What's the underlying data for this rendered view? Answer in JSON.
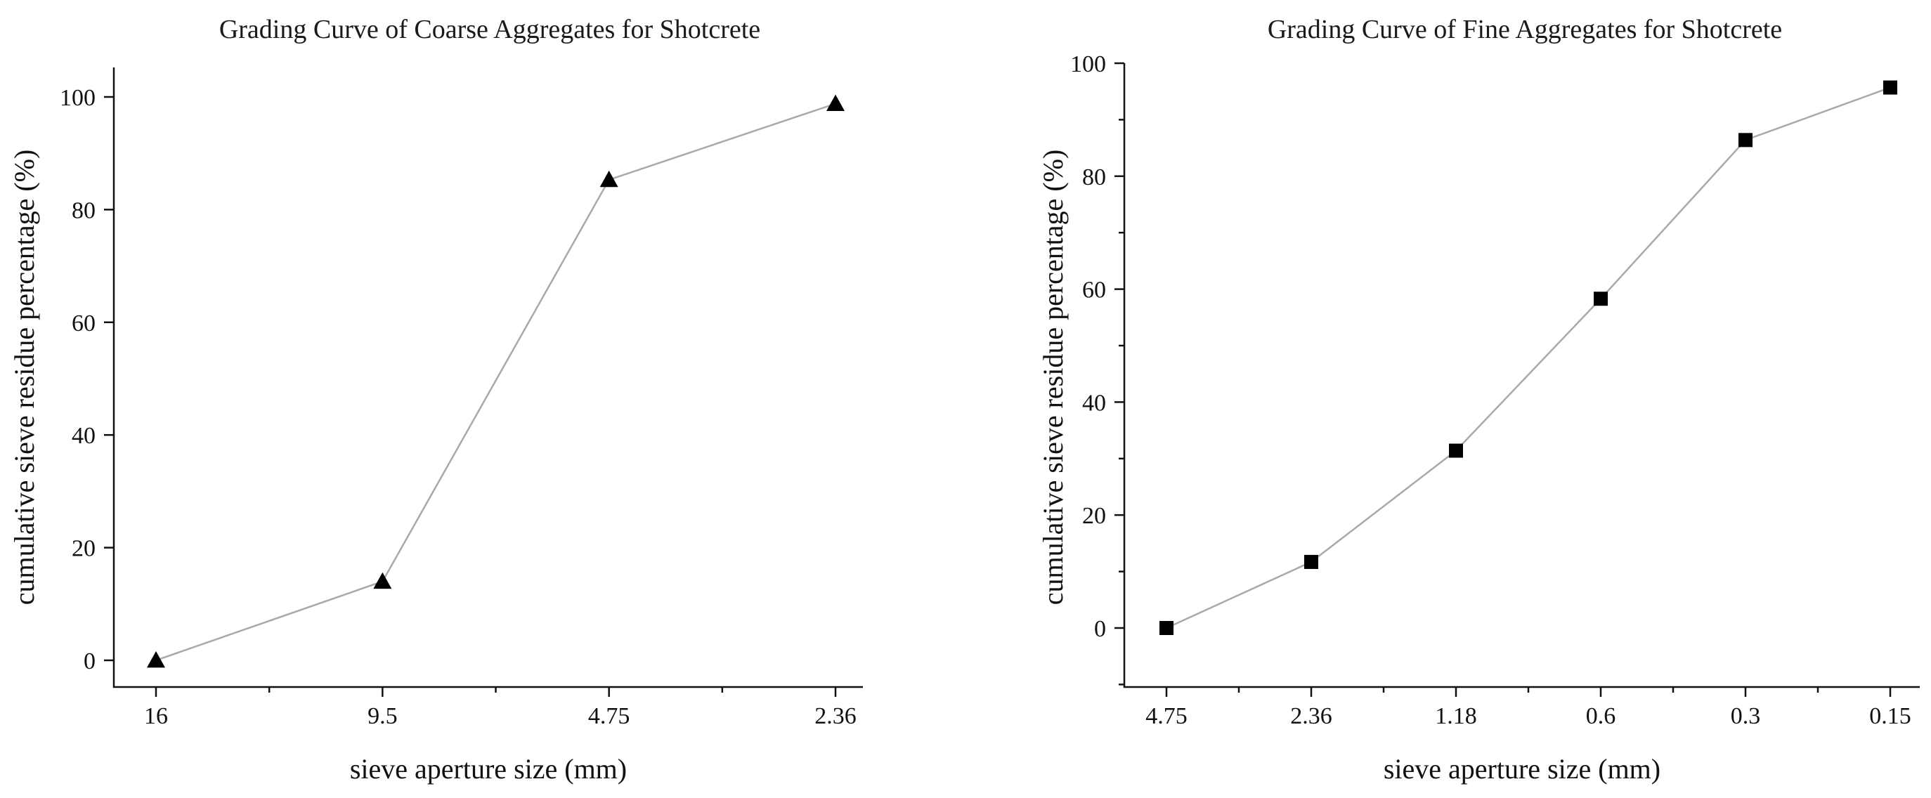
{
  "chart_data": [
    {
      "type": "line",
      "title": "Grading Curve of Coarse Aggregates for Shotcrete",
      "xlabel": "sieve aperture size (mm)",
      "ylabel": "cumulative sieve residue percentage (%)",
      "categories": [
        "16",
        "9.5",
        "4.75",
        "2.36"
      ],
      "ylim": [
        -5,
        105
      ],
      "yticks": [
        0,
        20,
        40,
        60,
        80,
        100
      ],
      "yticks_labeled": [
        0,
        20,
        40,
        60,
        80,
        100
      ],
      "grid": false,
      "marker": "triangle",
      "series": [
        {
          "name": "coarse aggregates",
          "values": [
            0,
            14,
            85.3,
            98.8
          ]
        }
      ]
    },
    {
      "type": "line",
      "title": "Grading Curve of Fine Aggregates for Shotcrete",
      "xlabel": "sieve aperture size (mm)",
      "ylabel": "cumulative sieve residue percentage (%)",
      "categories": [
        "4.75",
        "2.36",
        "1.18",
        "0.6",
        "0.3",
        "0.15"
      ],
      "ylim": [
        -10,
        100
      ],
      "yticks": [
        -10,
        0,
        10,
        20,
        30,
        40,
        50,
        60,
        70,
        80,
        90,
        100
      ],
      "yticks_labeled": [
        0,
        20,
        40,
        60,
        80,
        100
      ],
      "grid": false,
      "marker": "square",
      "series": [
        {
          "name": "fine aggregates",
          "values": [
            0,
            11.7,
            31.4,
            58.3,
            86.4,
            95.7
          ]
        }
      ]
    }
  ]
}
